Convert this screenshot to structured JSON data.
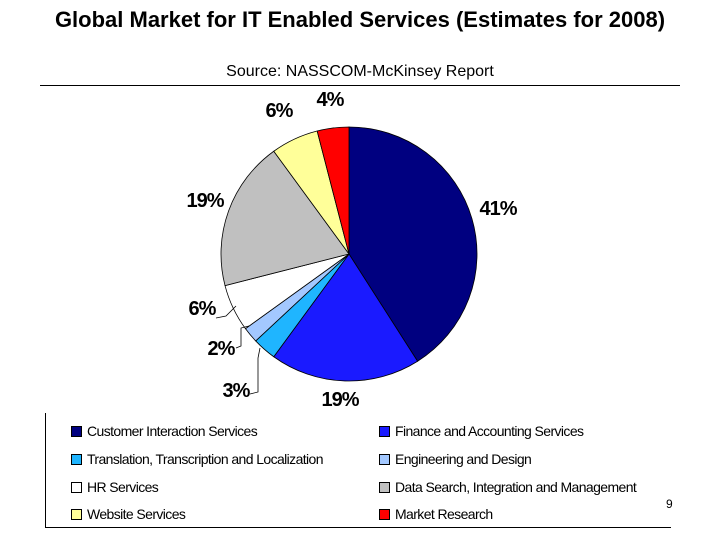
{
  "chart_data": {
    "type": "pie",
    "title": "Global Market for IT Enabled Services (Estimates for 2008)",
    "subtitle": "Source: NASSCOM-McKinsey Report",
    "slices": [
      {
        "name": "Customer Interaction Services",
        "value": 41,
        "label": "41%",
        "color": "#000080"
      },
      {
        "name": "Finance and Accounting Services",
        "value": 19,
        "label": "19%",
        "color": "#1a1aff"
      },
      {
        "name": "Translation, Transcription and Localization",
        "value": 3,
        "label": "3%",
        "color": "#1fb5ff"
      },
      {
        "name": "Engineering and Design",
        "value": 2,
        "label": "2%",
        "color": "#a3c8ff"
      },
      {
        "name": "HR Services",
        "value": 6,
        "label": "6%",
        "color": "#ffffff"
      },
      {
        "name": "Data Search, Integration and Management",
        "value": 19,
        "label": "19%",
        "color": "#c0c0c0"
      },
      {
        "name": "Website Services",
        "value": 6,
        "label": "6%",
        "color": "#ffff99"
      },
      {
        "name": "Market Research",
        "value": 4,
        "label": "4%",
        "color": "#ff0000"
      }
    ],
    "legend_placement": "bottom"
  },
  "page_number": "9"
}
